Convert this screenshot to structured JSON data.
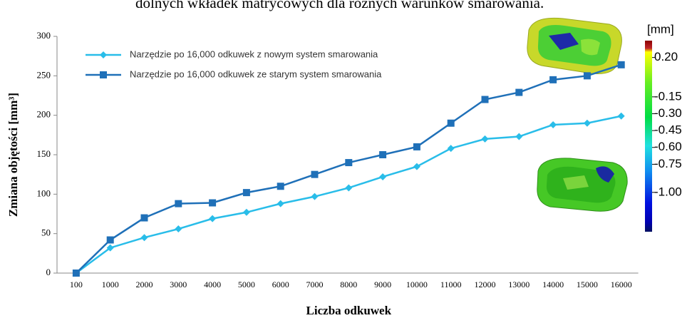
{
  "caption": "dolnych wkładek matrycowych dla różnych warunków smarowania.",
  "chart_data": {
    "type": "line",
    "x_label": "Liczba odkuwek",
    "y_label": "Zmiana objętości [mm³]",
    "categories": [
      "100",
      "1000",
      "2000",
      "3000",
      "4000",
      "5000",
      "6000",
      "7000",
      "8000",
      "9000",
      "10000",
      "11000",
      "12000",
      "13000",
      "14000",
      "15000",
      "16000"
    ],
    "series": [
      {
        "name": "Narzędzie po 16,000 odkuwek z nowym system smarowania",
        "color": "#29bde9",
        "marker": "diamond",
        "values": [
          0,
          32,
          45,
          56,
          69,
          77,
          88,
          97,
          108,
          122,
          135,
          158,
          170,
          173,
          188,
          190,
          199
        ]
      },
      {
        "name": "Narzędzie po 16,000 odkuwek ze starym system smarowania",
        "color": "#1f70b8",
        "marker": "square",
        "values": [
          0,
          42,
          70,
          88,
          89,
          102,
          110,
          125,
          140,
          150,
          160,
          190,
          220,
          229,
          245,
          250,
          264
        ]
      }
    ],
    "ylim": [
      0,
      300
    ],
    "yticks": [
      0,
      50,
      100,
      150,
      200,
      250,
      300
    ],
    "grid": false,
    "legend": "top-left"
  },
  "colorbar": {
    "title": "[mm]",
    "lim": [
      0.35,
      -1.35
    ],
    "ticks": [
      {
        "value": 0.2,
        "label": "0.20"
      },
      -0.15,
      {
        "value": -0.3,
        "label": "-0.30"
      },
      -0.45,
      {
        "value": -0.6,
        "label": "-0.60"
      },
      -0.75,
      {
        "value": -1.0,
        "label": "-1.00"
      }
    ]
  }
}
